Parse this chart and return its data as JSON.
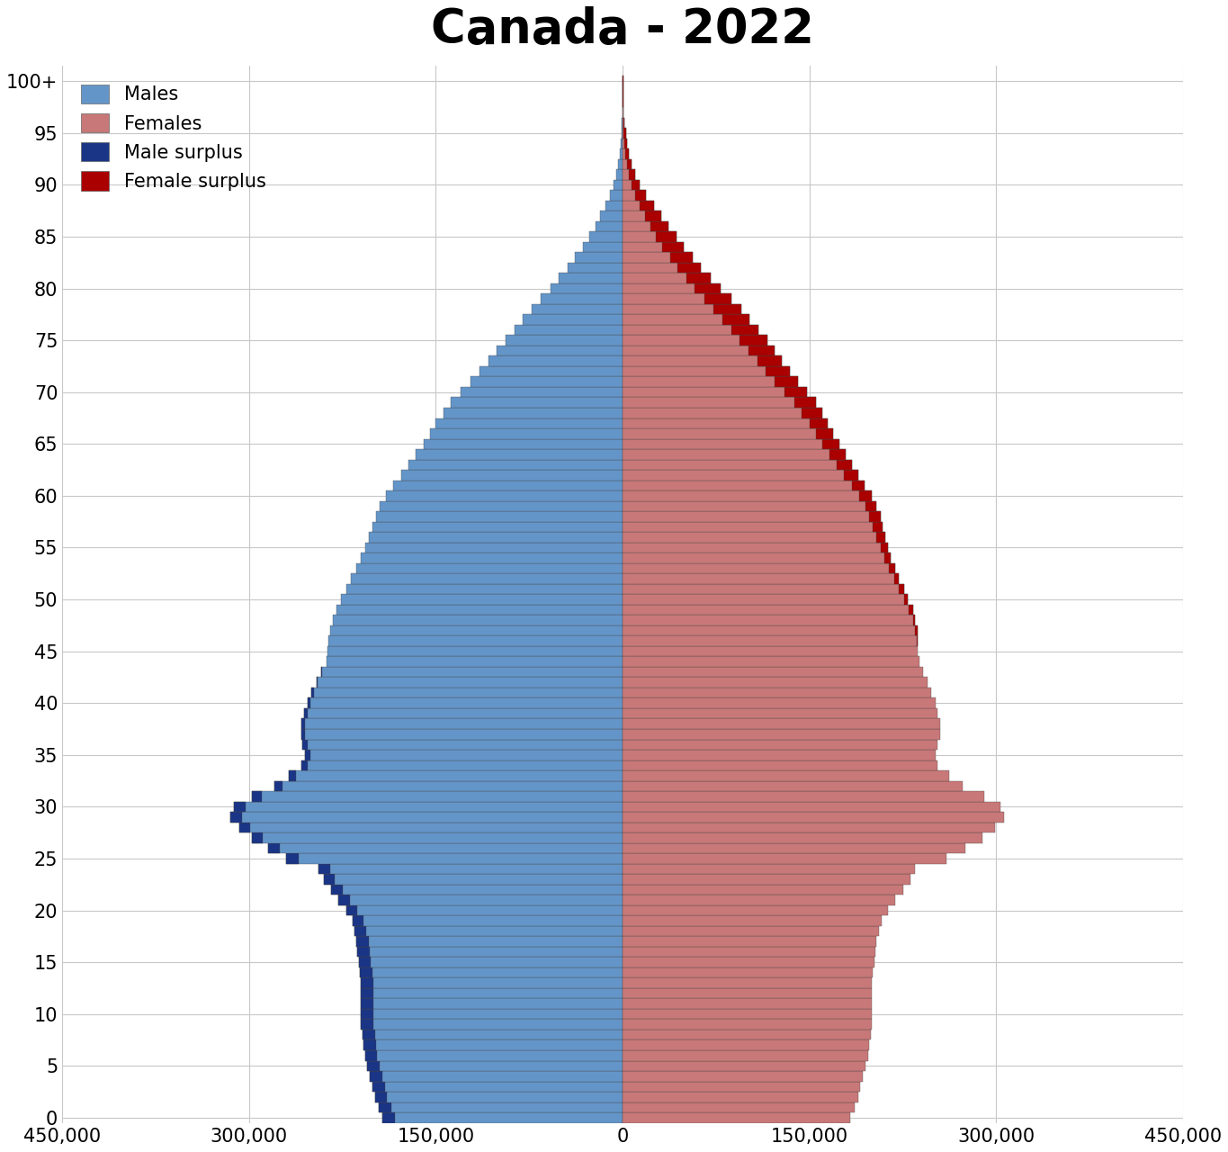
{
  "title": "Canada - 2022",
  "title_fontsize": 38,
  "title_fontweight": "bold",
  "male_color": "#6495c8",
  "female_color": "#c87878",
  "male_surplus_color": "#1a3585",
  "female_surplus_color": "#aa0000",
  "bar_edge_color": "#444444",
  "bar_linewidth": 0.25,
  "background_color": "#ffffff",
  "grid_color": "#c8c8c8",
  "xlim": 450000,
  "xlabel_vals": [
    -450000,
    -300000,
    -150000,
    0,
    150000,
    300000,
    450000
  ],
  "xlabel_labels": [
    "450,000",
    "300,000",
    "150,000",
    "0",
    "150,000",
    "300,000",
    "450,000"
  ],
  "ages": [
    0,
    1,
    2,
    3,
    4,
    5,
    6,
    7,
    8,
    9,
    10,
    11,
    12,
    13,
    14,
    15,
    16,
    17,
    18,
    19,
    20,
    21,
    22,
    23,
    24,
    25,
    26,
    27,
    28,
    29,
    30,
    31,
    32,
    33,
    34,
    35,
    36,
    37,
    38,
    39,
    40,
    41,
    42,
    43,
    44,
    45,
    46,
    47,
    48,
    49,
    50,
    51,
    52,
    53,
    54,
    55,
    56,
    57,
    58,
    59,
    60,
    61,
    62,
    63,
    64,
    65,
    66,
    67,
    68,
    69,
    70,
    71,
    72,
    73,
    74,
    75,
    76,
    77,
    78,
    79,
    80,
    81,
    82,
    83,
    84,
    85,
    86,
    87,
    88,
    89,
    90,
    91,
    92,
    93,
    94,
    95,
    96,
    97,
    98,
    99,
    100
  ],
  "males": [
    193000,
    196000,
    199000,
    201000,
    203000,
    205000,
    207000,
    208000,
    209000,
    210000,
    210000,
    210000,
    210000,
    210000,
    211000,
    212000,
    213000,
    214000,
    215000,
    217000,
    222000,
    228000,
    234000,
    240000,
    244000,
    270000,
    285000,
    298000,
    308000,
    315000,
    312000,
    298000,
    280000,
    268000,
    258000,
    255000,
    257000,
    258000,
    258000,
    256000,
    253000,
    250000,
    246000,
    242000,
    238000,
    237000,
    236000,
    235000,
    233000,
    230000,
    226000,
    222000,
    218000,
    214000,
    210000,
    207000,
    204000,
    201000,
    198000,
    195000,
    190000,
    184000,
    178000,
    172000,
    166000,
    160000,
    155000,
    150000,
    144000,
    138000,
    130000,
    122000,
    115000,
    108000,
    101000,
    94000,
    87000,
    80000,
    73000,
    66000,
    58000,
    51000,
    44000,
    38000,
    32000,
    27000,
    22000,
    18000,
    14000,
    10000,
    7000,
    5000,
    3400,
    2300,
    1500,
    950,
    590,
    360,
    210,
    125,
    85
  ],
  "females": [
    183000,
    186000,
    189000,
    191000,
    193000,
    195000,
    197000,
    198000,
    199000,
    200000,
    200000,
    200000,
    200000,
    200000,
    201000,
    202000,
    203000,
    204000,
    206000,
    208000,
    213000,
    219000,
    225000,
    231000,
    235000,
    260000,
    275000,
    289000,
    299000,
    306000,
    303000,
    290000,
    273000,
    262000,
    253000,
    251000,
    253000,
    255000,
    255000,
    253000,
    251000,
    248000,
    245000,
    241000,
    238000,
    237000,
    237000,
    237000,
    235000,
    233000,
    229000,
    226000,
    222000,
    219000,
    215000,
    213000,
    211000,
    209000,
    207000,
    204000,
    200000,
    194000,
    189000,
    184000,
    179000,
    174000,
    169000,
    165000,
    160000,
    155000,
    148000,
    141000,
    134000,
    128000,
    122000,
    116000,
    109000,
    102000,
    95000,
    87000,
    79000,
    71000,
    63000,
    56000,
    49000,
    43000,
    37000,
    31000,
    25000,
    19000,
    14000,
    10000,
    7200,
    5100,
    3600,
    2500,
    1600,
    1020,
    630,
    385,
    320
  ]
}
